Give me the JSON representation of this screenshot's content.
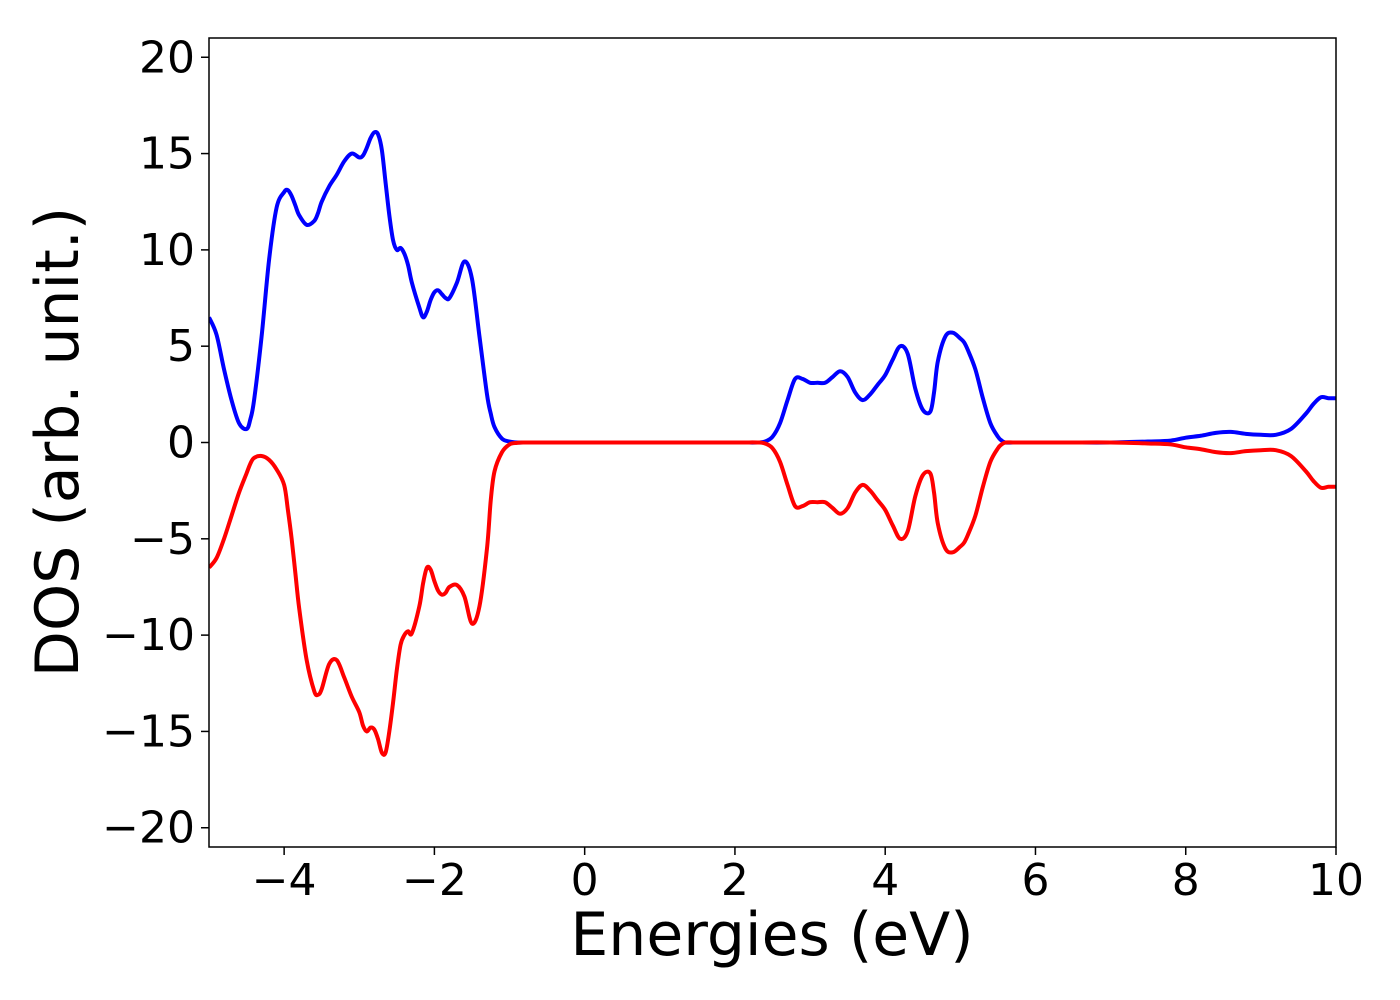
{
  "chart_data": {
    "type": "line",
    "title": "",
    "xlabel": "Energies (eV)",
    "ylabel": "DOS (arb. unit.)",
    "xlim": [
      -5,
      10
    ],
    "ylim": [
      -21,
      21
    ],
    "grid": false,
    "legend": "none",
    "xticks": [
      -4,
      -2,
      0,
      2,
      4,
      6,
      8,
      10
    ],
    "xtick_labels": [
      "−4",
      "−2",
      "0",
      "2",
      "4",
      "6",
      "8",
      "10"
    ],
    "yticks": [
      -20,
      -15,
      -10,
      -5,
      0,
      5,
      10,
      15,
      20
    ],
    "ytick_labels": [
      "−20",
      "−15",
      "−10",
      "−5",
      "0",
      "5",
      "10",
      "15",
      "20"
    ],
    "series": [
      {
        "color": "#0000ff",
        "x": [
          -5.0,
          -4.9,
          -4.8,
          -4.7,
          -4.6,
          -4.5,
          -4.45,
          -4.4,
          -4.3,
          -4.2,
          -4.1,
          -4.0,
          -3.95,
          -3.9,
          -3.85,
          -3.8,
          -3.7,
          -3.6,
          -3.55,
          -3.5,
          -3.4,
          -3.3,
          -3.2,
          -3.1,
          -3.0,
          -2.95,
          -2.9,
          -2.85,
          -2.8,
          -2.75,
          -2.7,
          -2.65,
          -2.6,
          -2.55,
          -2.5,
          -2.45,
          -2.4,
          -2.35,
          -2.3,
          -2.2,
          -2.15,
          -2.1,
          -2.05,
          -2.0,
          -1.95,
          -1.9,
          -1.85,
          -1.8,
          -1.7,
          -1.6,
          -1.5,
          -1.4,
          -1.3,
          -1.25,
          -1.2,
          -1.1,
          -1.0,
          -0.9,
          -0.8,
          -0.7,
          -0.6,
          -0.5,
          0.0,
          1.0,
          2.0,
          2.3,
          2.4,
          2.5,
          2.6,
          2.7,
          2.8,
          2.9,
          3.0,
          3.1,
          3.2,
          3.3,
          3.4,
          3.5,
          3.6,
          3.7,
          3.8,
          3.9,
          4.0,
          4.1,
          4.2,
          4.3,
          4.4,
          4.5,
          4.6,
          4.65,
          4.7,
          4.8,
          4.9,
          5.0,
          5.05,
          5.1,
          5.2,
          5.3,
          5.4,
          5.5,
          5.55,
          5.6,
          5.7,
          5.8,
          5.9,
          6.0,
          6.1,
          6.2,
          6.3,
          6.4,
          6.5,
          7.0,
          7.5,
          7.8,
          8.0,
          8.2,
          8.4,
          8.6,
          8.8,
          9.0,
          9.2,
          9.4,
          9.6,
          9.7,
          9.8,
          9.9,
          10.0
        ],
        "y": [
          6.5,
          5.6,
          3.8,
          2.2,
          1.0,
          0.7,
          1.2,
          2.2,
          5.5,
          9.5,
          12.2,
          13.0,
          13.1,
          12.8,
          12.3,
          11.8,
          11.3,
          11.5,
          11.9,
          12.5,
          13.3,
          13.9,
          14.6,
          15.0,
          14.8,
          14.9,
          15.3,
          15.8,
          16.1,
          16.0,
          15.2,
          13.5,
          11.8,
          10.5,
          10.0,
          10.1,
          9.8,
          9.2,
          8.3,
          7.0,
          6.5,
          6.8,
          7.4,
          7.8,
          7.9,
          7.7,
          7.5,
          7.5,
          8.3,
          9.4,
          8.5,
          5.5,
          2.5,
          1.5,
          0.8,
          0.2,
          0.05,
          0.0,
          0.0,
          0.0,
          0.0,
          0.0,
          0.0,
          0.0,
          0.0,
          0.0,
          0.05,
          0.3,
          1.0,
          2.2,
          3.3,
          3.3,
          3.1,
          3.1,
          3.1,
          3.4,
          3.7,
          3.4,
          2.6,
          2.2,
          2.5,
          3.0,
          3.5,
          4.3,
          5.0,
          4.6,
          2.8,
          1.7,
          1.6,
          2.6,
          4.2,
          5.5,
          5.7,
          5.4,
          5.2,
          4.8,
          3.8,
          2.3,
          1.0,
          0.3,
          0.1,
          0.0,
          0.0,
          0.0,
          0.0,
          0.0,
          0.0,
          0.0,
          0.0,
          0.0,
          0.0,
          0.0,
          0.05,
          0.1,
          0.25,
          0.35,
          0.5,
          0.55,
          0.45,
          0.4,
          0.4,
          0.7,
          1.5,
          2.0,
          2.35,
          2.3,
          2.3
        ]
      },
      {
        "color": "#ff0000",
        "x": [
          -5.0,
          -4.9,
          -4.8,
          -4.7,
          -4.6,
          -4.5,
          -4.45,
          -4.4,
          -4.3,
          -4.2,
          -4.1,
          -4.0,
          -3.95,
          -3.9,
          -3.85,
          -3.8,
          -3.7,
          -3.6,
          -3.55,
          -3.5,
          -3.4,
          -3.3,
          -3.2,
          -3.1,
          -3.0,
          -2.95,
          -2.9,
          -2.85,
          -2.8,
          -2.75,
          -2.7,
          -2.65,
          -2.6,
          -2.55,
          -2.5,
          -2.45,
          -2.4,
          -2.35,
          -2.3,
          -2.2,
          -2.15,
          -2.1,
          -2.05,
          -2.0,
          -1.95,
          -1.9,
          -1.85,
          -1.8,
          -1.7,
          -1.6,
          -1.5,
          -1.4,
          -1.3,
          -1.25,
          -1.2,
          -1.1,
          -1.0,
          -0.9,
          -0.8,
          -0.7,
          -0.6,
          -0.5,
          0.0,
          1.0,
          2.0,
          2.3,
          2.4,
          2.5,
          2.6,
          2.7,
          2.8,
          2.9,
          3.0,
          3.1,
          3.2,
          3.3,
          3.4,
          3.5,
          3.6,
          3.7,
          3.8,
          3.9,
          4.0,
          4.1,
          4.2,
          4.3,
          4.4,
          4.5,
          4.6,
          4.65,
          4.7,
          4.8,
          4.9,
          5.0,
          5.05,
          5.1,
          5.2,
          5.3,
          5.4,
          5.5,
          5.55,
          5.6,
          5.7,
          5.8,
          5.9,
          6.0,
          6.1,
          6.2,
          6.3,
          6.4,
          6.5,
          7.0,
          7.5,
          7.8,
          8.0,
          8.2,
          8.4,
          8.6,
          8.8,
          9.0,
          9.2,
          9.4,
          9.6,
          9.7,
          9.8,
          9.9,
          10.0
        ],
        "y": [
          -6.5,
          -6.0,
          -5.0,
          -3.8,
          -2.6,
          -1.6,
          -1.1,
          -0.8,
          -0.7,
          -0.9,
          -1.4,
          -2.2,
          -3.5,
          -5.0,
          -6.8,
          -8.6,
          -11.3,
          -12.9,
          -13.1,
          -12.8,
          -11.5,
          -11.3,
          -12.2,
          -13.2,
          -14.0,
          -14.7,
          -15.0,
          -14.8,
          -14.9,
          -15.4,
          -16.1,
          -16.1,
          -15.0,
          -13.5,
          -11.8,
          -10.5,
          -10.0,
          -9.8,
          -9.9,
          -8.5,
          -7.3,
          -6.5,
          -6.6,
          -7.2,
          -7.7,
          -7.9,
          -7.8,
          -7.5,
          -7.4,
          -8.0,
          -9.4,
          -8.5,
          -5.5,
          -3.0,
          -1.5,
          -0.5,
          -0.1,
          -0.02,
          0.0,
          0.0,
          0.0,
          0.0,
          0.0,
          0.0,
          0.0,
          0.0,
          -0.05,
          -0.3,
          -1.0,
          -2.2,
          -3.3,
          -3.3,
          -3.1,
          -3.1,
          -3.1,
          -3.4,
          -3.7,
          -3.4,
          -2.6,
          -2.2,
          -2.5,
          -3.0,
          -3.5,
          -4.3,
          -5.0,
          -4.6,
          -2.8,
          -1.7,
          -1.6,
          -2.6,
          -4.2,
          -5.5,
          -5.7,
          -5.4,
          -5.2,
          -4.8,
          -3.8,
          -2.3,
          -1.0,
          -0.3,
          -0.1,
          0.0,
          0.0,
          0.0,
          0.0,
          0.0,
          0.0,
          0.0,
          0.0,
          0.0,
          0.0,
          0.0,
          -0.05,
          -0.1,
          -0.25,
          -0.35,
          -0.5,
          -0.55,
          -0.45,
          -0.4,
          -0.4,
          -0.7,
          -1.5,
          -2.0,
          -2.35,
          -2.3,
          -2.3
        ]
      }
    ]
  }
}
